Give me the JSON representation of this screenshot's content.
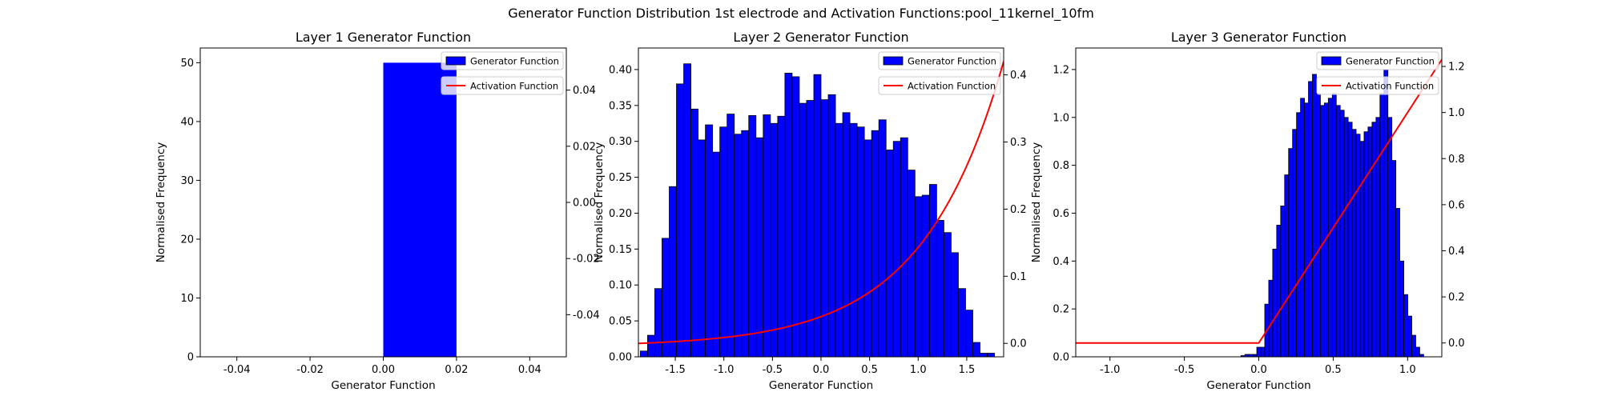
{
  "figure": {
    "title": "Generator Function Distribution 1st electrode and Activation Functions:pool_11kernel_10fm"
  },
  "chart_data": [
    {
      "type": "bar",
      "title": "Layer 1 Generator Function",
      "xlabel": "Generator Function",
      "ylabel": "Normalised Frequency",
      "xlim": [
        -0.05,
        0.05
      ],
      "ylim": [
        0,
        52.5
      ],
      "xticks": [
        "-0.04",
        "-0.02",
        "0.00",
        "0.02",
        "0.04"
      ],
      "xtick_values": [
        -0.04,
        -0.02,
        0.0,
        0.02,
        0.04
      ],
      "yticks": [
        "0",
        "10",
        "20",
        "30",
        "40",
        "50"
      ],
      "ytick_values": [
        0,
        10,
        20,
        30,
        40,
        50
      ],
      "y2lim": [
        -0.055,
        0.055
      ],
      "y2ticks": [
        "-0.04",
        "-0.02",
        "0.00",
        "0.02",
        "0.04"
      ],
      "y2tick_values": [
        -0.04,
        -0.02,
        0.0,
        0.02,
        0.04
      ],
      "bins": {
        "start": 0.0,
        "width": 0.02,
        "values": [
          50
        ]
      },
      "activation": {
        "kind": "none"
      },
      "legend": [
        "Generator Function",
        "Activation Function"
      ],
      "legend_position": "top-right",
      "colors": {
        "bars": "#0000ff",
        "edge": "#000000",
        "activation": "#ff0000"
      }
    },
    {
      "type": "bar",
      "title": "Layer 2 Generator Function",
      "xlabel": "Generator Function",
      "ylabel": "Normalised Frequency",
      "xlim": [
        -1.88,
        1.88
      ],
      "ylim": [
        0,
        0.43
      ],
      "xticks": [
        "-1.5",
        "-1.0",
        "-0.5",
        "0.0",
        "0.5",
        "1.0",
        "1.5"
      ],
      "xtick_values": [
        -1.5,
        -1.0,
        -0.5,
        0.0,
        0.5,
        1.0,
        1.5
      ],
      "yticks": [
        "0.00",
        "0.05",
        "0.10",
        "0.15",
        "0.20",
        "0.25",
        "0.30",
        "0.35",
        "0.40"
      ],
      "ytick_values": [
        0.0,
        0.05,
        0.1,
        0.15,
        0.2,
        0.25,
        0.3,
        0.35,
        0.4
      ],
      "y2lim": [
        -0.02,
        0.44
      ],
      "y2ticks": [
        "0.0",
        "0.1",
        "0.2",
        "0.3",
        "0.4"
      ],
      "y2tick_values": [
        0.0,
        0.1,
        0.2,
        0.3,
        0.4
      ],
      "bins": {
        "start": -1.86,
        "width": 0.0744,
        "values": [
          0.008,
          0.03,
          0.095,
          0.165,
          0.237,
          0.38,
          0.408,
          0.345,
          0.302,
          0.323,
          0.285,
          0.32,
          0.338,
          0.31,
          0.315,
          0.336,
          0.305,
          0.337,
          0.325,
          0.335,
          0.395,
          0.39,
          0.353,
          0.357,
          0.393,
          0.358,
          0.365,
          0.325,
          0.34,
          0.325,
          0.32,
          0.302,
          0.315,
          0.33,
          0.288,
          0.3,
          0.305,
          0.26,
          0.223,
          0.225,
          0.24,
          0.19,
          0.173,
          0.145,
          0.095,
          0.065,
          0.02,
          0.005,
          0.005
        ]
      },
      "activation": {
        "kind": "exp",
        "a": 0.0445,
        "b": 1.2,
        "xmin": -1.88,
        "xmax": 1.88
      },
      "legend": [
        "Generator Function",
        "Activation Function"
      ],
      "legend_position": "top-right",
      "colors": {
        "bars": "#0000ff",
        "edge": "#000000",
        "activation": "#ff0000"
      }
    },
    {
      "type": "bar",
      "title": "Layer 3 Generator Function",
      "xlabel": "Generator Function",
      "ylabel": "Normalised Frequency",
      "xlim": [
        -1.23,
        1.23
      ],
      "ylim": [
        0,
        1.29
      ],
      "xticks": [
        "-1.0",
        "-0.5",
        "0.0",
        "0.5",
        "1.0"
      ],
      "xtick_values": [
        -1.0,
        -0.5,
        0.0,
        0.5,
        1.0
      ],
      "yticks": [
        "0.0",
        "0.2",
        "0.4",
        "0.6",
        "0.8",
        "1.0",
        "1.2"
      ],
      "ytick_values": [
        0.0,
        0.2,
        0.4,
        0.6,
        0.8,
        1.0,
        1.2
      ],
      "y2lim": [
        -0.06,
        1.28
      ],
      "y2ticks": [
        "0.0",
        "0.2",
        "0.4",
        "0.6",
        "0.8",
        "1.0",
        "1.2"
      ],
      "y2tick_values": [
        0.0,
        0.2,
        0.4,
        0.6,
        0.8,
        1.0,
        1.2
      ],
      "bins": {
        "start": -0.12,
        "width": 0.0267,
        "values": [
          0.005,
          0.01,
          0.01,
          0.01,
          0.04,
          0.04,
          0.22,
          0.32,
          0.45,
          0.55,
          0.63,
          0.76,
          0.87,
          0.95,
          1.02,
          1.08,
          1.06,
          1.15,
          1.18,
          1.1,
          1.05,
          1.06,
          1.08,
          1.1,
          1.05,
          1.03,
          1.0,
          0.98,
          0.95,
          0.93,
          0.9,
          0.94,
          0.96,
          0.98,
          1.0,
          1.1,
          1.2,
          1.0,
          0.82,
          0.62,
          0.4,
          0.26,
          0.17,
          0.09,
          0.04,
          0.01
        ]
      },
      "activation": {
        "kind": "relu",
        "xmin": -1.23,
        "xmax": 1.23
      },
      "legend": [
        "Generator Function",
        "Activation Function"
      ],
      "legend_position": "top-right",
      "colors": {
        "bars": "#0000ff",
        "edge": "#000000",
        "activation": "#ff0000"
      }
    }
  ]
}
